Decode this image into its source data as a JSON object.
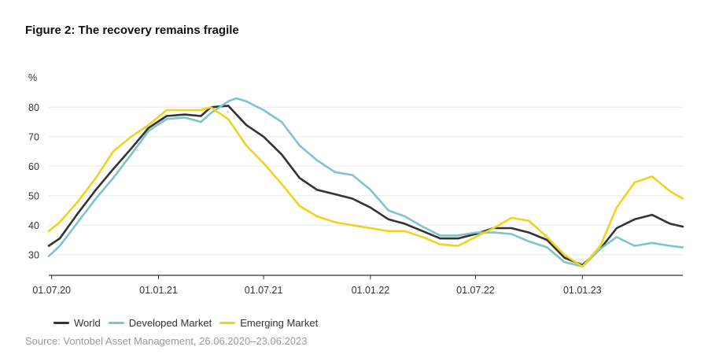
{
  "title": "Figure 2: The recovery remains fragile",
  "source": "Source: Vontobel Asset Management, 26.06.2020–23.06.2023",
  "colors": {
    "World": "#333333",
    "Developed Market": "#7fc4c9",
    "Emerging Market": "#f0d31c",
    "grid": "#e9e9e9",
    "axis": "#333333"
  },
  "chart_data": {
    "type": "line",
    "ylabel": "%",
    "ylim": [
      23,
      87
    ],
    "yticks": [
      30,
      40,
      50,
      60,
      70,
      80
    ],
    "xlim": [
      "2020-06-26",
      "2023-06-23"
    ],
    "xticks": [
      {
        "date": "2020-07-01",
        "label": "01.07.20"
      },
      {
        "date": "2021-01-01",
        "label": "01.01.21"
      },
      {
        "date": "2021-07-01",
        "label": "01.07.21"
      },
      {
        "date": "2022-01-01",
        "label": "01.01.22"
      },
      {
        "date": "2022-07-01",
        "label": "01.07.22"
      },
      {
        "date": "2023-01-01",
        "label": "01.01.23"
      }
    ],
    "grid": true,
    "legend_position": "bottom-left",
    "series": [
      {
        "name": "World",
        "points": [
          [
            "2020-06-26",
            33
          ],
          [
            "2020-07-15",
            35.5
          ],
          [
            "2020-08-15",
            44
          ],
          [
            "2020-09-15",
            52
          ],
          [
            "2020-10-15",
            59
          ],
          [
            "2020-11-15",
            66
          ],
          [
            "2020-12-15",
            73
          ],
          [
            "2021-01-15",
            77
          ],
          [
            "2021-02-15",
            77.5
          ],
          [
            "2021-03-15",
            77
          ],
          [
            "2021-04-01",
            80
          ],
          [
            "2021-05-01",
            80.5
          ],
          [
            "2021-06-01",
            74
          ],
          [
            "2021-07-01",
            70
          ],
          [
            "2021-08-01",
            64
          ],
          [
            "2021-09-01",
            56
          ],
          [
            "2021-10-01",
            52
          ],
          [
            "2021-11-01",
            50.5
          ],
          [
            "2021-12-01",
            49
          ],
          [
            "2022-01-01",
            46
          ],
          [
            "2022-02-01",
            42
          ],
          [
            "2022-03-01",
            40.5
          ],
          [
            "2022-04-01",
            38
          ],
          [
            "2022-05-01",
            35.5
          ],
          [
            "2022-06-01",
            35.5
          ],
          [
            "2022-07-01",
            37
          ],
          [
            "2022-08-01",
            39
          ],
          [
            "2022-09-01",
            39
          ],
          [
            "2022-10-01",
            37.5
          ],
          [
            "2022-11-01",
            35
          ],
          [
            "2022-12-01",
            29
          ],
          [
            "2023-01-01",
            26.5
          ],
          [
            "2023-02-01",
            32
          ],
          [
            "2023-03-01",
            39
          ],
          [
            "2023-04-01",
            42
          ],
          [
            "2023-05-01",
            43.5
          ],
          [
            "2023-06-01",
            40.5
          ],
          [
            "2023-06-23",
            39.5
          ]
        ]
      },
      {
        "name": "Developed Market",
        "points": [
          [
            "2020-06-26",
            29.5
          ],
          [
            "2020-07-15",
            33
          ],
          [
            "2020-08-15",
            41
          ],
          [
            "2020-09-15",
            49
          ],
          [
            "2020-10-15",
            56
          ],
          [
            "2020-11-15",
            64
          ],
          [
            "2020-12-15",
            72
          ],
          [
            "2021-01-15",
            76
          ],
          [
            "2021-02-15",
            76.5
          ],
          [
            "2021-03-15",
            75
          ],
          [
            "2021-04-01",
            78
          ],
          [
            "2021-05-01",
            82
          ],
          [
            "2021-05-15",
            83
          ],
          [
            "2021-06-01",
            82
          ],
          [
            "2021-07-01",
            79
          ],
          [
            "2021-08-01",
            75
          ],
          [
            "2021-09-01",
            67
          ],
          [
            "2021-10-01",
            62
          ],
          [
            "2021-11-01",
            58
          ],
          [
            "2021-12-01",
            57
          ],
          [
            "2022-01-01",
            52
          ],
          [
            "2022-02-01",
            45
          ],
          [
            "2022-03-01",
            43
          ],
          [
            "2022-04-01",
            39.5
          ],
          [
            "2022-05-01",
            36.5
          ],
          [
            "2022-06-01",
            36.5
          ],
          [
            "2022-07-01",
            37.5
          ],
          [
            "2022-08-01",
            37.5
          ],
          [
            "2022-09-01",
            37
          ],
          [
            "2022-10-01",
            34.5
          ],
          [
            "2022-11-01",
            32.5
          ],
          [
            "2022-12-01",
            27.5
          ],
          [
            "2023-01-01",
            26
          ],
          [
            "2023-02-01",
            32
          ],
          [
            "2023-03-01",
            36
          ],
          [
            "2023-04-01",
            33
          ],
          [
            "2023-05-01",
            34
          ],
          [
            "2023-06-01",
            33
          ],
          [
            "2023-06-23",
            32.5
          ]
        ]
      },
      {
        "name": "Emerging Market",
        "points": [
          [
            "2020-06-26",
            38
          ],
          [
            "2020-07-15",
            41
          ],
          [
            "2020-08-15",
            48
          ],
          [
            "2020-09-15",
            56
          ],
          [
            "2020-10-15",
            65
          ],
          [
            "2020-11-15",
            70
          ],
          [
            "2020-12-15",
            74
          ],
          [
            "2021-01-15",
            79
          ],
          [
            "2021-02-15",
            79
          ],
          [
            "2021-03-15",
            79
          ],
          [
            "2021-04-01",
            80
          ],
          [
            "2021-05-01",
            76
          ],
          [
            "2021-06-01",
            67
          ],
          [
            "2021-07-01",
            61
          ],
          [
            "2021-08-01",
            54
          ],
          [
            "2021-09-01",
            46.5
          ],
          [
            "2021-10-01",
            43
          ],
          [
            "2021-11-01",
            41
          ],
          [
            "2021-12-01",
            40
          ],
          [
            "2022-01-01",
            39
          ],
          [
            "2022-02-01",
            38
          ],
          [
            "2022-03-01",
            38
          ],
          [
            "2022-04-01",
            36
          ],
          [
            "2022-05-01",
            33.5
          ],
          [
            "2022-06-01",
            33
          ],
          [
            "2022-07-01",
            36
          ],
          [
            "2022-08-01",
            39
          ],
          [
            "2022-09-01",
            42.5
          ],
          [
            "2022-10-01",
            41.5
          ],
          [
            "2022-11-01",
            36
          ],
          [
            "2022-12-01",
            30
          ],
          [
            "2023-01-01",
            26
          ],
          [
            "2023-02-01",
            33
          ],
          [
            "2023-03-01",
            46
          ],
          [
            "2023-04-01",
            54.5
          ],
          [
            "2023-05-01",
            56.5
          ],
          [
            "2023-06-01",
            51.5
          ],
          [
            "2023-06-23",
            49
          ]
        ]
      }
    ]
  }
}
